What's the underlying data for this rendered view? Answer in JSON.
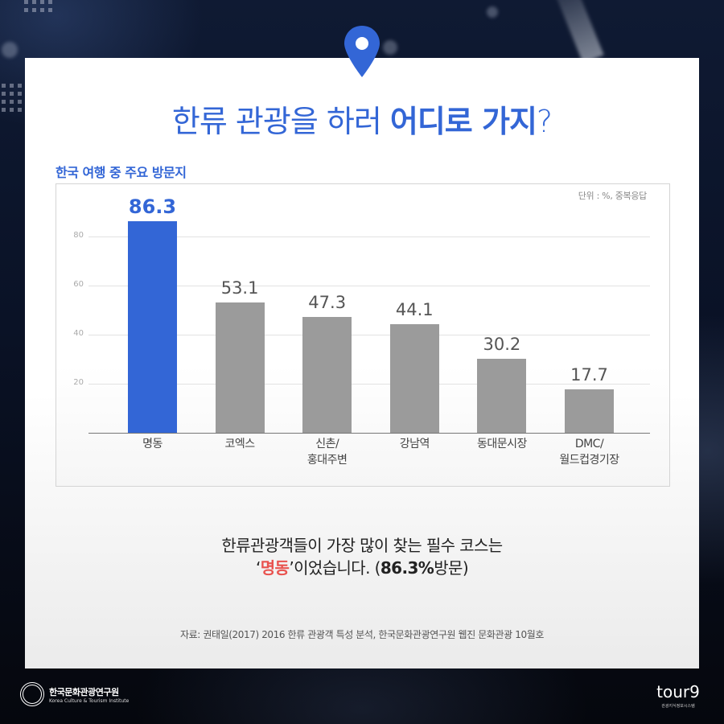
{
  "header": {
    "title_light": "한류 관광을 하러 ",
    "title_bold": "어디로 가지",
    "title_end": "?",
    "pin_icon": "map-pin-icon"
  },
  "chart": {
    "subtitle": "한국 여행 중 주요 방문지",
    "unit_note": "단위 : %, 중복응답"
  },
  "chart_data": {
    "type": "bar",
    "title": "한국 여행 중 주요 방문지",
    "categories": [
      "명동",
      "코엑스",
      "신촌/\n홍대주변",
      "강남역",
      "동대문시장",
      "DMC/\n월드컵경기장"
    ],
    "values": [
      86.3,
      53.1,
      47.3,
      44.1,
      30.2,
      17.7
    ],
    "value_labels": [
      "86.3",
      "53.1",
      "47.3",
      "44.1",
      "30.2",
      "17.7"
    ],
    "highlight_index": 0,
    "colors": {
      "highlight": "#3366d6",
      "default": "#9b9b9b"
    },
    "yticks": [
      20,
      40,
      60,
      80
    ],
    "ylim": [
      0,
      90
    ],
    "xlabel": "",
    "ylabel": "",
    "unit": "단위 : %, 중복응답",
    "grid": true,
    "legend": "none"
  },
  "summary": {
    "line1": "한류관광객들이 가장 많이 찾는 필수 코스는",
    "quote_open": "‘",
    "highlight": "명동",
    "quote_close": "’",
    "rest": "이었습니다. (",
    "stat": "86.3%",
    "stat_suffix": "방문)"
  },
  "source": "자료: 권태일(2017) 2016 한류 관광객 특성 분석, 한국문화관광연구원 웹진 문화관광 10월호",
  "footer": {
    "left_logo_kr": "한국문화관광연구원",
    "left_logo_en": "Korea Culture & Tourism Institute",
    "right_logo_brand": "tour9",
    "right_logo_sub": "관광지식정보시스템"
  }
}
